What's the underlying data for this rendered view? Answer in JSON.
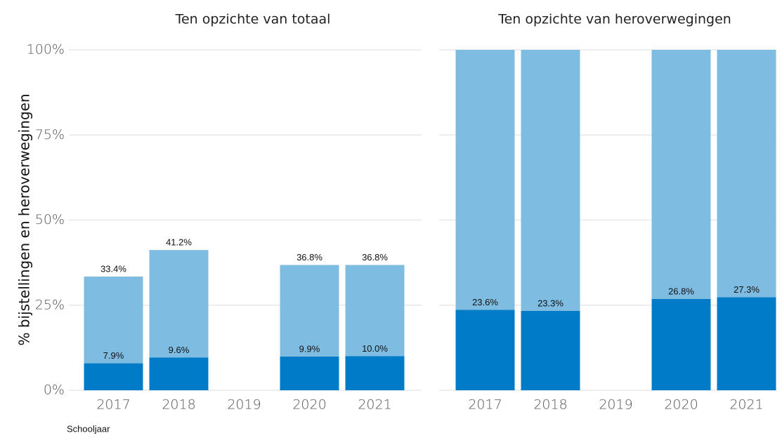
{
  "chart_data": [
    {
      "type": "bar",
      "title": "Ten opzichte van totaal",
      "ylabel": "% bijstellingen en heroverwegingen",
      "xlabel": "Schooljaar",
      "categories": [
        "2017",
        "2018",
        "2019",
        "2020",
        "2021"
      ],
      "series": [
        {
          "color": "#7fbce2",
          "values": [
            33.4,
            41.2,
            null,
            36.8,
            36.8
          ],
          "value_labels": [
            "33.4%",
            "41.2%",
            null,
            "36.8%",
            "36.8%"
          ]
        },
        {
          "color": "#007bc7",
          "values": [
            7.9,
            9.6,
            null,
            9.9,
            10.0
          ],
          "value_labels": [
            "7.9%",
            "9.6%",
            null,
            "9.9%",
            "10.0%"
          ]
        }
      ],
      "ylim": [
        0,
        100
      ],
      "yticks": [
        {
          "value": 0,
          "label": "0%"
        },
        {
          "value": 25,
          "label": "25%"
        },
        {
          "value": 50,
          "label": "50%"
        },
        {
          "value": 75,
          "label": "75%"
        },
        {
          "value": 100,
          "label": "100%"
        }
      ],
      "grid": true
    },
    {
      "type": "bar",
      "title": "Ten opzichte van heroverwegingen",
      "categories": [
        "2017",
        "2018",
        "2019",
        "2020",
        "2021"
      ],
      "series": [
        {
          "color": "#7fbce2",
          "values": [
            100,
            100,
            null,
            100,
            100
          ]
        },
        {
          "color": "#007bc7",
          "values": [
            23.6,
            23.3,
            null,
            26.8,
            27.3
          ],
          "value_labels": [
            "23.6%",
            "23.3%",
            null,
            "26.8%",
            "27.3%"
          ]
        }
      ],
      "ylim": [
        0,
        100
      ],
      "yticks": [
        0,
        25,
        50,
        75,
        100
      ],
      "grid": true
    }
  ]
}
